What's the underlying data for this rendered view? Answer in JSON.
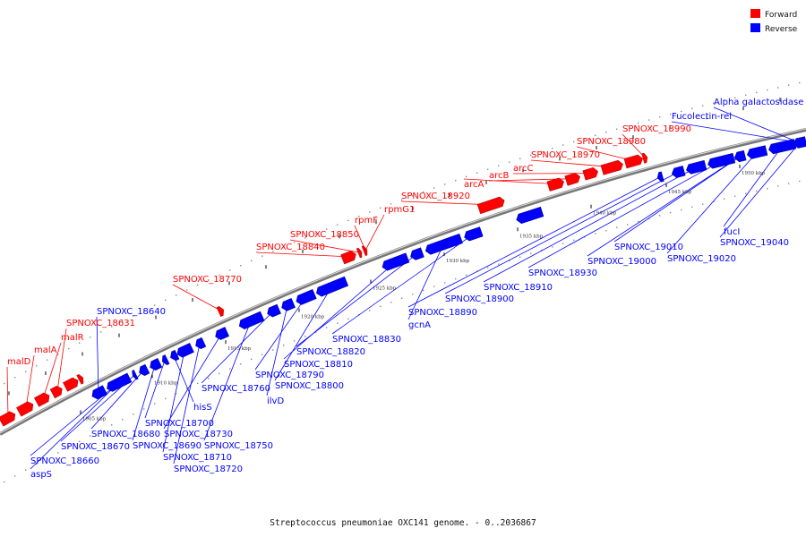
{
  "caption": "Streptococcus pneumoniae OXC141 genome. - 0..2036867",
  "legend": [
    {
      "label": "Forward",
      "color": "#ff0000"
    },
    {
      "label": "Reverse",
      "color": "#0000ff"
    }
  ],
  "colors": {
    "forward": "#ff0000",
    "reverse": "#0000ff",
    "backbone": "#777777"
  },
  "ticks": [
    "1905 kbp",
    "1910 kbp",
    "1915 kbp",
    "1920 kbp",
    "1925 kbp",
    "1930 kbp",
    "1935 kbp",
    "1940 kbp",
    "1945 kbp",
    "1950 kbp"
  ],
  "forward_labels": [
    "malD",
    "malA",
    "malR",
    "SPNOXC_18631",
    "SPNOXC_18770",
    "SPNOXC_18840",
    "SPNOXC_18850",
    "rpmF",
    "rpmG1",
    "SPNOXC_18920",
    "arcA",
    "arcB",
    "arcC",
    "SPNOXC_18970",
    "SPNOXC_18980",
    "SPNOXC_18990"
  ],
  "reverse_labels": [
    "SPNOXC_18640",
    "aspS",
    "SPNOXC_18660",
    "SPNOXC_18670",
    "SPNOXC_18680",
    "SPNOXC_18690",
    "SPNOXC_18700",
    "hisS",
    "SPNOXC_18710",
    "SPNOXC_18720",
    "SPNOXC_18730",
    "SPNOXC_18750",
    "SPNOXC_18760",
    "ilvD",
    "SPNOXC_18790",
    "SPNOXC_18800",
    "SPNOXC_18810",
    "SPNOXC_18820",
    "SPNOXC_18830",
    "gcnA",
    "SPNOXC_18890",
    "SPNOXC_18900",
    "SPNOXC_18910",
    "SPNOXC_18930",
    "SPNOXC_19000",
    "SPNOXC_19010",
    "SPNOXC_19020",
    "fucI",
    "SPNOXC_19040",
    "Fucolectin-rel",
    "Alpha galactosidase"
  ]
}
